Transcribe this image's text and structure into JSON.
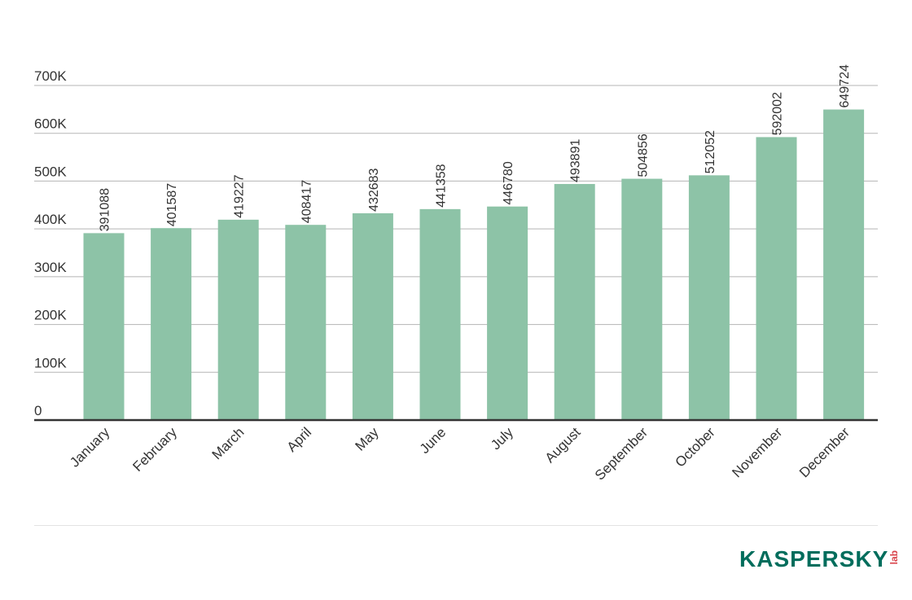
{
  "chart_data": {
    "type": "bar",
    "categories": [
      "January",
      "February",
      "March",
      "April",
      "May",
      "June",
      "July",
      "August",
      "September",
      "October",
      "November",
      "December"
    ],
    "values": [
      391088,
      401587,
      419227,
      408417,
      432683,
      441358,
      446780,
      493891,
      504856,
      512052,
      592002,
      649724
    ],
    "ylim": [
      0,
      700000
    ],
    "yticks": [
      {
        "value": 0,
        "label": "0"
      },
      {
        "value": 100000,
        "label": "100K"
      },
      {
        "value": 200000,
        "label": "200K"
      },
      {
        "value": 300000,
        "label": "300K"
      },
      {
        "value": 400000,
        "label": "400K"
      },
      {
        "value": 500000,
        "label": "500K"
      },
      {
        "value": 600000,
        "label": "600K"
      },
      {
        "value": 700000,
        "label": "700K"
      }
    ],
    "grid": true,
    "bar_color": "#8dc3a7",
    "title": "",
    "xlabel": "",
    "ylabel": ""
  },
  "logo": {
    "word": "KASPERSKY",
    "sub": "lab",
    "color": "#006d5c",
    "sub_color": "#d9434a"
  }
}
